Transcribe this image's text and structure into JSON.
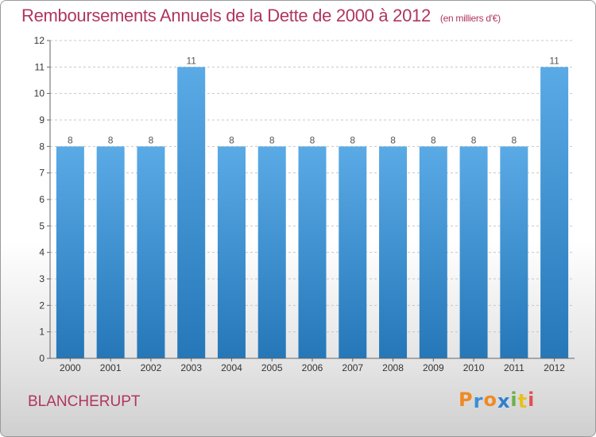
{
  "chart_data": {
    "type": "bar",
    "title": "Remboursements Annuels de la Dette de 2000 à 2012",
    "subtitle": "(en milliers d'€)",
    "categories": [
      "2000",
      "2001",
      "2002",
      "2003",
      "2004",
      "2005",
      "2006",
      "2007",
      "2008",
      "2009",
      "2010",
      "2011",
      "2012"
    ],
    "values": [
      8,
      8,
      8,
      11,
      8,
      8,
      8,
      8,
      8,
      8,
      8,
      8,
      11
    ],
    "data_labels": [
      "8",
      "8",
      "8",
      "11",
      "8",
      "8",
      "8",
      "8",
      "8",
      "8",
      "8",
      "8",
      "11"
    ],
    "ylim": [
      0,
      12
    ],
    "yticks": [
      "0",
      "1",
      "2",
      "3",
      "4",
      "5",
      "6",
      "7",
      "8",
      "9",
      "10",
      "11",
      "12"
    ],
    "xlabel": "",
    "ylabel": "",
    "grid": "horizontal dashed",
    "bar_color_top": "#5aaae6",
    "bar_color_bottom": "#2577b8"
  },
  "footer": {
    "commune": "BLANCHERUPT",
    "logo_letters": [
      "P",
      "r",
      "o",
      "x",
      "i",
      "t",
      "i"
    ],
    "logo_colors": [
      "#f08a24",
      "#3a8fd6",
      "#f08a24",
      "#2f7fd0",
      "#6ab04c",
      "#e8c020",
      "#e35050"
    ]
  }
}
